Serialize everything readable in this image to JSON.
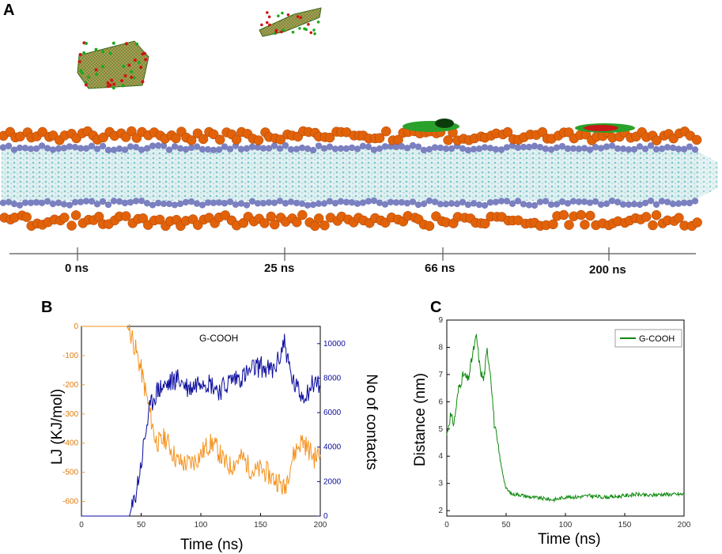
{
  "panels": {
    "a_label": "A",
    "b_label": "B",
    "c_label": "C"
  },
  "membrane_timeline": {
    "labels": [
      "0 ns",
      "25 ns",
      "66 ns",
      "200 ns"
    ]
  },
  "colors": {
    "orange": "#f5921e",
    "navy": "#0b0b9e",
    "green": "#0e8a0e",
    "headgroup": "#e2620a",
    "headgroup_purple": "#7a80c0",
    "tails": "#9ad3d6"
  },
  "chart_data": [
    {
      "id": "B",
      "type": "line",
      "title": "G-COOH",
      "xlabel": "Time (ns)",
      "ylabel_left": "LJ (KJ/mol)",
      "ylabel_right": "No of contacts",
      "xlim": [
        0,
        200
      ],
      "ylim_left": [
        -650,
        0
      ],
      "ylim_right": [
        0,
        11000
      ],
      "xticks": [
        "0",
        "50",
        "100",
        "150",
        "200"
      ],
      "yticks_left": [
        "0",
        "-100",
        "-200",
        "-300",
        "-400",
        "-500",
        "-600"
      ],
      "yticks_right": [
        "0",
        "2000",
        "4000",
        "6000",
        "8000",
        "10000"
      ],
      "series": [
        {
          "name": "LJ",
          "axis": "left",
          "color": "#f5921e",
          "x": [
            0,
            38,
            42,
            46,
            50,
            54,
            58,
            62,
            66,
            70,
            75,
            80,
            85,
            90,
            95,
            100,
            105,
            110,
            115,
            120,
            125,
            130,
            135,
            140,
            145,
            150,
            155,
            160,
            165,
            170,
            175,
            180,
            185,
            190,
            195,
            200
          ],
          "y": [
            0,
            0,
            -30,
            -90,
            -150,
            -230,
            -310,
            -390,
            -400,
            -380,
            -420,
            -460,
            -470,
            -470,
            -460,
            -440,
            -410,
            -400,
            -430,
            -470,
            -480,
            -460,
            -450,
            -480,
            -500,
            -490,
            -500,
            -520,
            -530,
            -560,
            -470,
            -420,
            -390,
            -420,
            -450,
            -440
          ]
        },
        {
          "name": "No of contacts",
          "axis": "right",
          "color": "#0b0b9e",
          "x": [
            0,
            40,
            43,
            46,
            50,
            53,
            56,
            60,
            64,
            68,
            72,
            76,
            80,
            85,
            90,
            95,
            100,
            105,
            110,
            115,
            120,
            125,
            130,
            135,
            140,
            145,
            150,
            155,
            160,
            165,
            170,
            173,
            176,
            180,
            185,
            190,
            195,
            200
          ],
          "y": [
            0,
            0,
            500,
            1500,
            3000,
            4500,
            5800,
            6800,
            7300,
            7500,
            7600,
            7800,
            8000,
            7700,
            7400,
            7600,
            8000,
            7800,
            7600,
            7300,
            7500,
            7900,
            8000,
            8100,
            8300,
            8600,
            8700,
            8500,
            8400,
            9000,
            10200,
            9000,
            8000,
            7400,
            7000,
            7300,
            7800,
            7600
          ]
        }
      ]
    },
    {
      "id": "C",
      "type": "line",
      "xlabel": "Time (ns)",
      "ylabel": "Distance (nm)",
      "xlim": [
        0,
        200
      ],
      "ylim": [
        1.8,
        9
      ],
      "xticks": [
        "0",
        "50",
        "100",
        "150",
        "200"
      ],
      "yticks": [
        "2",
        "3",
        "4",
        "5",
        "6",
        "7",
        "8",
        "9"
      ],
      "legend": "G-COOH",
      "legend_position": "top-right",
      "series": [
        {
          "name": "G-COOH",
          "color": "#0e8a0e",
          "x": [
            0,
            3,
            6,
            10,
            14,
            18,
            22,
            25,
            28,
            31,
            34,
            37,
            40,
            43,
            46,
            50,
            55,
            60,
            70,
            80,
            90,
            100,
            110,
            120,
            130,
            140,
            150,
            160,
            170,
            180,
            190,
            200
          ],
          "y": [
            4.8,
            5.5,
            5.2,
            6.5,
            7.0,
            6.8,
            7.8,
            8.4,
            7.2,
            6.8,
            7.9,
            7.0,
            5.2,
            4.4,
            3.6,
            2.8,
            2.6,
            2.6,
            2.5,
            2.45,
            2.4,
            2.5,
            2.5,
            2.55,
            2.5,
            2.5,
            2.55,
            2.6,
            2.55,
            2.6,
            2.6,
            2.6
          ]
        }
      ]
    }
  ]
}
